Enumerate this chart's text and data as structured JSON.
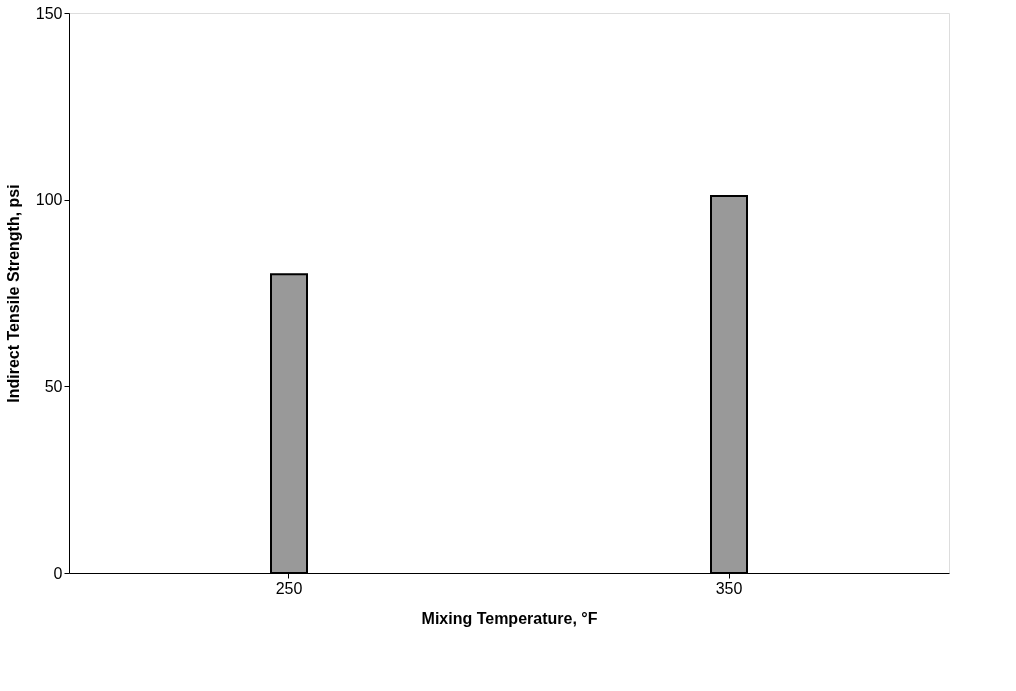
{
  "chart_data": {
    "type": "bar",
    "xlabel": "Mixing Temperature, °F",
    "ylabel": "Indirect Tensile Strength, psi",
    "categories": [
      "250",
      "350"
    ],
    "values": [
      80,
      101
    ],
    "color": "#999999",
    "ylim": [
      0,
      150
    ],
    "yticks": [
      0,
      50,
      100,
      150
    ],
    "grid": false
  }
}
